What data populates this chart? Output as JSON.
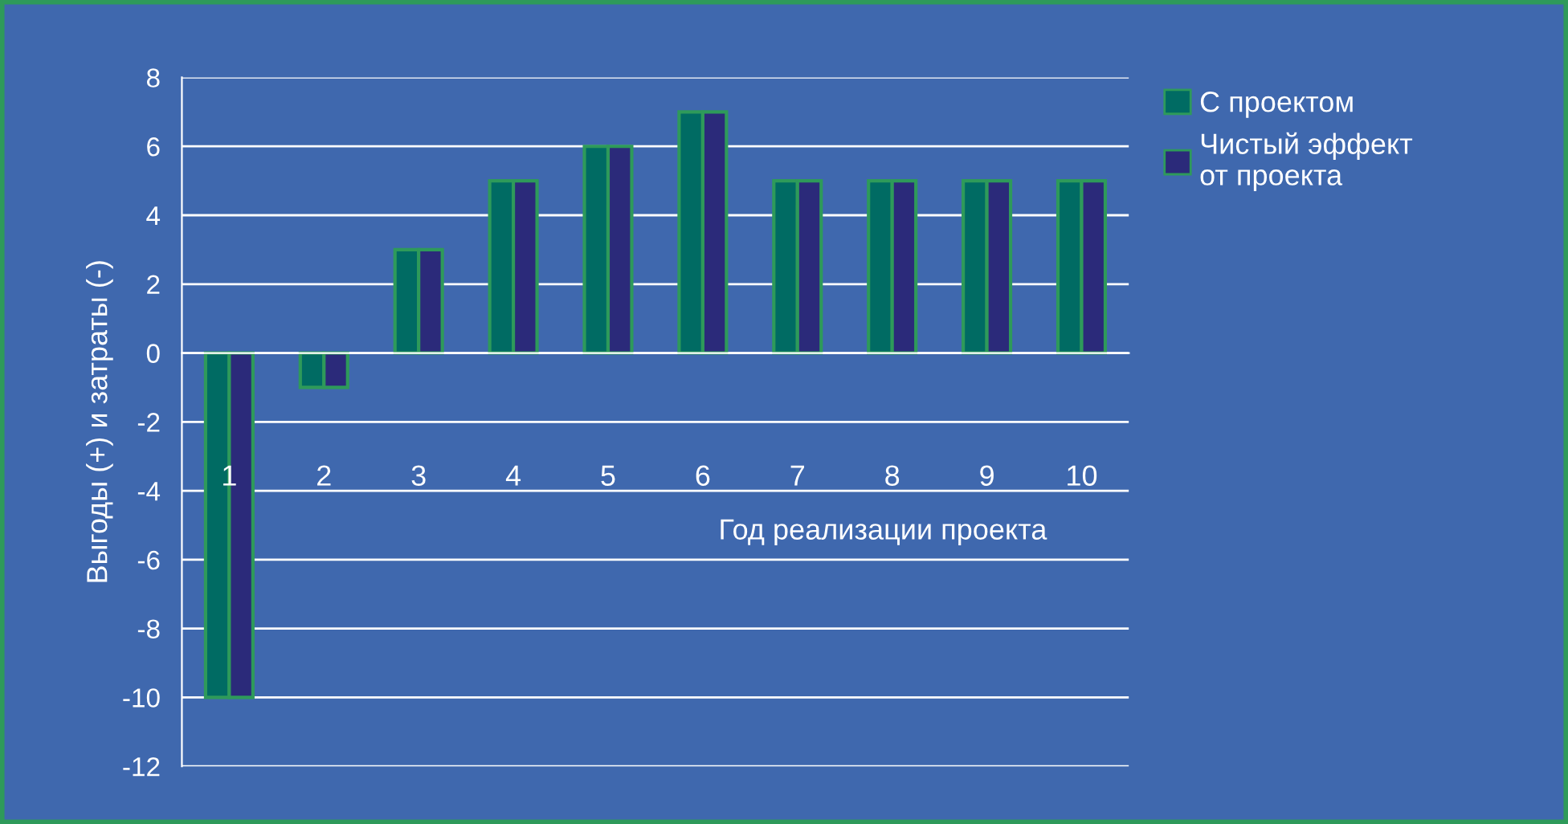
{
  "chart_data": {
    "type": "bar",
    "xlabel": "Год реализации проекта",
    "ylabel": "Выгоды (+) и затраты (-)",
    "categories": [
      "1",
      "2",
      "3",
      "4",
      "5",
      "6",
      "7",
      "8",
      "9",
      "10"
    ],
    "series": [
      {
        "name": "С проектом",
        "color": "#006b63",
        "values": [
          -10,
          -1,
          3,
          5,
          6,
          7,
          5,
          5,
          5,
          5
        ]
      },
      {
        "name": "Чистый эффект от проекта",
        "color": "#2b2a7a",
        "values": [
          -10,
          -1,
          3,
          5,
          6,
          7,
          5,
          5,
          5,
          5
        ]
      }
    ],
    "ylim": [
      -12,
      8
    ],
    "yticks": [
      -12,
      -10,
      -8,
      -6,
      -4,
      -2,
      0,
      2,
      4,
      6,
      8
    ],
    "grid": "y",
    "legend": "top right"
  }
}
